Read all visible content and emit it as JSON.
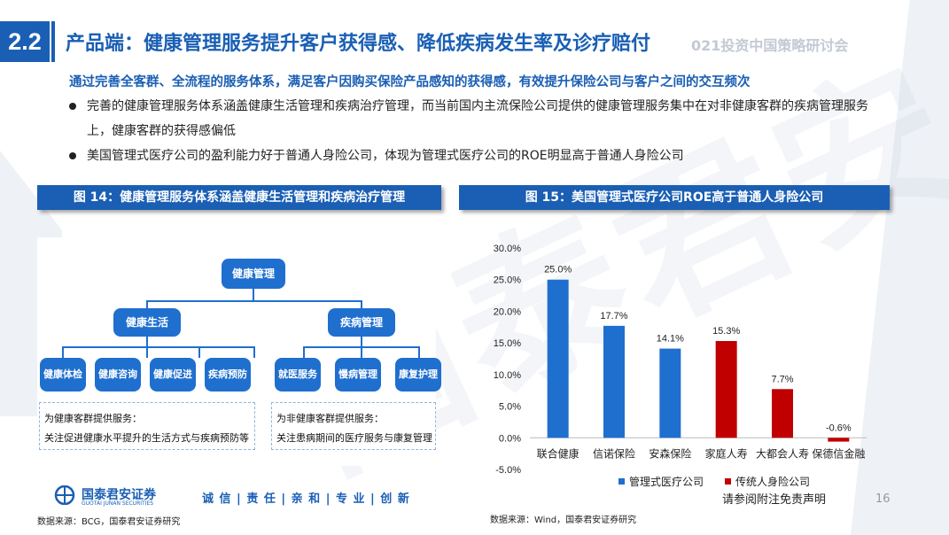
{
  "header": {
    "section_number": "2.2",
    "title": "产品端：健康管理服务提升客户获得感、降低疾病发生率及诊疗赔付",
    "event_label": "021投资中国策略研讨会"
  },
  "intro": {
    "subtitle": "通过完善全客群、全流程的服务体系，满足客户因购买保险产品感知的获得感，有效提升保险公司与客户之间的交互频次",
    "bullets": [
      "完善的健康管理服务体系涵盖健康生活管理和疾病治疗管理，而当前国内主流保险公司提供的健康管理服务集中在对非健康客群的疾病管理服务上，健康客群的获得感偏低",
      "美国管理式医疗公司的盈利能力好于普通人身险公司，体现为管理式医疗公司的ROE明显高于普通人身险公司"
    ]
  },
  "figure14": {
    "title": "图 14：健康管理服务体系涵盖健康生活管理和疾病治疗管理",
    "root": "健康管理",
    "branches": [
      {
        "label": "健康生活",
        "children": [
          "健康体检",
          "健康咨询",
          "健康促进",
          "疾病预防"
        ]
      },
      {
        "label": "疾病管理",
        "children": [
          "就医服务",
          "慢病管理",
          "康复护理"
        ]
      }
    ],
    "notes": [
      {
        "line1": "为健康客群提供服务：",
        "line2": "关注促进健康水平提升的生活方式与疾病预防等"
      },
      {
        "line1": "为非健康客群提供服务：",
        "line2": "关注患病期间的医疗服务与康复管理"
      }
    ],
    "source": "数据来源：BCG，国泰君安证券研究"
  },
  "figure15": {
    "title": "图 15：美国管理式医疗公司ROE高于普通人身险公司",
    "source": "数据来源：Wind，国泰君安证券研究"
  },
  "chart_data": {
    "type": "bar",
    "categories": [
      "联合健康",
      "信诺保险",
      "安森保险",
      "家庭人寿",
      "大都会人寿",
      "保德信金融"
    ],
    "values": [
      25.0,
      17.7,
      14.1,
      15.3,
      7.7,
      -0.6
    ],
    "value_labels": [
      "25.0%",
      "17.7%",
      "14.1%",
      "15.3%",
      "7.7%",
      "-0.6%"
    ],
    "series_of_category": [
      0,
      0,
      0,
      1,
      1,
      1
    ],
    "series": [
      {
        "name": "管理式医疗公司",
        "color": "#1f6fcf"
      },
      {
        "name": "传统人身险公司",
        "color": "#c00000"
      }
    ],
    "ylim": [
      -5,
      30
    ],
    "yticks": [
      -5,
      0,
      5,
      10,
      15,
      20,
      25,
      30
    ],
    "ytick_labels": [
      "-5.0%",
      "0.0%",
      "5.0%",
      "10.0%",
      "15.0%",
      "20.0%",
      "25.0%",
      "30.0%"
    ],
    "legend_position": "bottom",
    "grid": false
  },
  "footer": {
    "logo_cn": "国泰君安证券",
    "logo_en": "GUOTAI JUNAN SECURITIES",
    "motto": "诚 信 | 责 任 | 亲 和 | 专 业 | 创 新",
    "disclaimer": "请参阅附注免责声明",
    "page_number": "16"
  },
  "watermark": "国泰君安"
}
